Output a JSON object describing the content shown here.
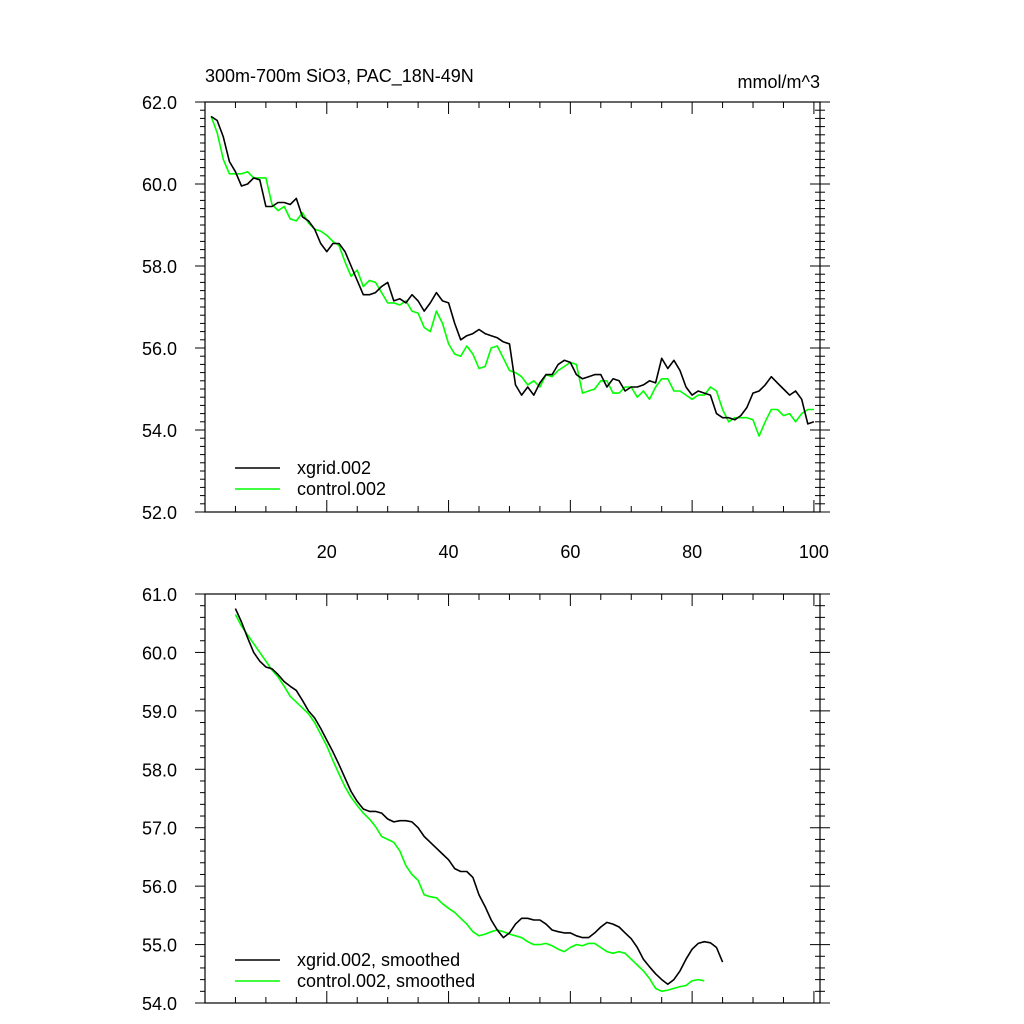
{
  "title_left": "300m-700m SiO3, PAC_18N-49N",
  "title_right": "mmol/m^3",
  "chart_data": [
    {
      "type": "line",
      "title": "300m-700m SiO3, PAC_18N-49N",
      "units": "mmol/m^3",
      "xlim": [
        0,
        101
      ],
      "ylim": [
        52.0,
        62.0
      ],
      "x_ticks": [
        20,
        40,
        60,
        80,
        100
      ],
      "y_ticks": [
        52.0,
        54.0,
        56.0,
        58.0,
        60.0,
        62.0
      ],
      "y_tick_labels": [
        "52.0",
        "54.0",
        "56.0",
        "58.0",
        "60.0",
        "62.0"
      ],
      "legend_position": "bottom-left",
      "series": [
        {
          "name": "xgrid.002",
          "color": "#000000",
          "x_start": 1,
          "values": [
            61.65,
            61.55,
            61.15,
            60.55,
            60.3,
            59.95,
            60.0,
            60.15,
            60.1,
            59.45,
            59.45,
            59.55,
            59.55,
            59.5,
            59.65,
            59.2,
            59.1,
            58.9,
            58.55,
            58.35,
            58.55,
            58.55,
            58.35,
            58.0,
            57.65,
            57.3,
            57.3,
            57.35,
            57.5,
            57.6,
            57.15,
            57.2,
            57.1,
            57.3,
            57.15,
            56.9,
            57.1,
            57.35,
            57.15,
            57.1,
            56.6,
            56.2,
            56.3,
            56.35,
            56.45,
            56.35,
            56.3,
            56.25,
            56.15,
            56.1,
            55.1,
            54.85,
            55.05,
            54.85,
            55.15,
            55.35,
            55.35,
            55.6,
            55.7,
            55.65,
            55.35,
            55.25,
            55.3,
            55.35,
            55.35,
            55.05,
            55.25,
            55.2,
            54.95,
            55.05,
            55.05,
            55.1,
            55.2,
            55.15,
            55.75,
            55.5,
            55.7,
            55.45,
            55.05,
            54.85,
            54.95,
            54.9,
            54.85,
            54.4,
            54.3,
            54.3,
            54.25,
            54.35,
            54.55,
            54.9,
            54.95,
            55.1,
            55.3,
            55.15,
            55.0,
            54.85,
            54.95,
            54.75,
            54.15,
            54.2
          ]
        },
        {
          "name": "control.002",
          "color": "#00ff00",
          "x_start": 1,
          "values": [
            61.65,
            61.25,
            60.6,
            60.25,
            60.25,
            60.25,
            60.3,
            60.15,
            60.15,
            60.15,
            59.5,
            59.35,
            59.45,
            59.15,
            59.1,
            59.3,
            59.05,
            58.9,
            58.85,
            58.75,
            58.6,
            58.5,
            58.1,
            57.75,
            57.9,
            57.5,
            57.65,
            57.6,
            57.35,
            57.1,
            57.1,
            57.05,
            57.15,
            56.9,
            56.85,
            56.5,
            56.4,
            56.9,
            56.6,
            56.1,
            55.85,
            55.8,
            56.05,
            55.85,
            55.5,
            55.55,
            56.0,
            56.05,
            55.75,
            55.45,
            55.4,
            55.3,
            55.1,
            55.2,
            55.05,
            55.35,
            55.3,
            55.45,
            55.55,
            55.65,
            55.6,
            54.9,
            54.95,
            55.0,
            55.2,
            55.2,
            54.9,
            54.9,
            55.05,
            55.05,
            54.8,
            54.95,
            54.75,
            55.05,
            55.25,
            55.25,
            54.95,
            54.95,
            54.85,
            54.75,
            54.85,
            54.85,
            55.05,
            54.95,
            54.5,
            54.2,
            54.3,
            54.3,
            54.3,
            54.25,
            53.85,
            54.2,
            54.5,
            54.5,
            54.35,
            54.4,
            54.2,
            54.4,
            54.5,
            54.5
          ]
        }
      ]
    },
    {
      "type": "line",
      "title": "",
      "xlim": [
        0,
        101
      ],
      "ylim": [
        54.0,
        61.0
      ],
      "x_ticks": [
        20,
        40,
        60,
        80,
        100
      ],
      "y_ticks": [
        54.0,
        55.0,
        56.0,
        57.0,
        58.0,
        59.0,
        60.0,
        61.0
      ],
      "y_tick_labels": [
        "54.0",
        "55.0",
        "56.0",
        "57.0",
        "58.0",
        "59.0",
        "60.0",
        "61.0"
      ],
      "legend_position": "bottom-left",
      "series": [
        {
          "name": "xgrid.002, smoothed",
          "color": "#000000",
          "x_start": 5,
          "values": [
            60.75,
            60.52,
            60.25,
            60.0,
            59.85,
            59.75,
            59.72,
            59.62,
            59.5,
            59.42,
            59.35,
            59.18,
            59.0,
            58.88,
            58.7,
            58.5,
            58.3,
            58.08,
            57.85,
            57.62,
            57.45,
            57.32,
            57.28,
            57.28,
            57.25,
            57.15,
            57.1,
            57.12,
            57.12,
            57.1,
            57.0,
            56.85,
            56.75,
            56.65,
            56.55,
            56.45,
            56.3,
            56.25,
            56.25,
            56.15,
            55.85,
            55.65,
            55.42,
            55.25,
            55.12,
            55.2,
            55.35,
            55.45,
            55.45,
            55.42,
            55.42,
            55.35,
            55.25,
            55.22,
            55.2,
            55.2,
            55.15,
            55.12,
            55.12,
            55.2,
            55.3,
            55.38,
            55.35,
            55.3,
            55.2,
            55.1,
            54.95,
            54.75,
            54.62,
            54.5,
            54.4,
            54.32,
            54.4,
            54.55,
            54.75,
            54.92,
            55.02,
            55.05,
            55.03,
            54.95,
            54.7
          ]
        },
        {
          "name": "control.002, smoothed",
          "color": "#00ff00",
          "x_start": 5,
          "values": [
            60.65,
            60.45,
            60.3,
            60.15,
            60.0,
            59.85,
            59.7,
            59.58,
            59.42,
            59.25,
            59.15,
            59.05,
            58.95,
            58.8,
            58.6,
            58.4,
            58.15,
            57.92,
            57.7,
            57.52,
            57.38,
            57.25,
            57.15,
            57.02,
            56.85,
            56.8,
            56.75,
            56.6,
            56.35,
            56.2,
            56.1,
            55.85,
            55.82,
            55.8,
            55.7,
            55.62,
            55.55,
            55.45,
            55.35,
            55.22,
            55.15,
            55.18,
            55.22,
            55.25,
            55.22,
            55.18,
            55.15,
            55.12,
            55.05,
            55.0,
            55.0,
            55.02,
            54.98,
            54.92,
            54.88,
            54.95,
            55.0,
            54.98,
            55.02,
            55.02,
            54.95,
            54.88,
            54.85,
            54.88,
            54.85,
            54.75,
            54.65,
            54.55,
            54.42,
            54.25,
            54.2,
            54.22,
            54.25,
            54.28,
            54.3,
            54.38,
            54.4,
            54.38
          ]
        }
      ]
    }
  ]
}
